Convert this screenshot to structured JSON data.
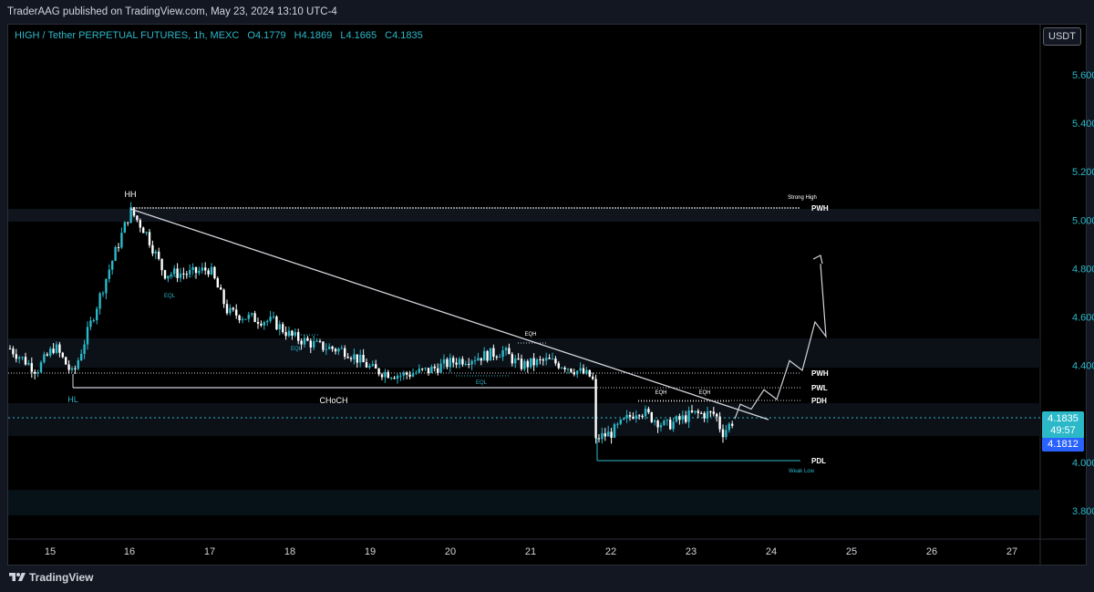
{
  "header": {
    "publisher": "TraderAAG published on TradingView.com, May 23, 2024 13:10 UTC-4"
  },
  "legend": {
    "symbol": "HIGH / Tether PERPETUAL FUTURES, 1h, MEXC",
    "open": "O4.1779",
    "high": "H4.1869",
    "low": "L4.1665",
    "close": "C4.1835"
  },
  "price_axis": {
    "unit": "USDT",
    "labels": [
      "5.6000",
      "5.4000",
      "5.2000",
      "5.0000",
      "4.8000",
      "4.6000",
      "4.4000",
      "4.0000",
      "3.8000"
    ],
    "current_price": "4.1835",
    "countdown": "49:57",
    "marker_price": "4.1812"
  },
  "time_axis": {
    "labels": [
      "15",
      "16",
      "17",
      "18",
      "19",
      "20",
      "21",
      "22",
      "23",
      "24",
      "25",
      "26",
      "27"
    ]
  },
  "annotations": {
    "hh": "HH",
    "hl": "HL",
    "choch": "CHoCH",
    "eql1": "EQL",
    "eql2": "EQL",
    "eql3": "EQL",
    "eqh1": "EQH",
    "eqh2": "EQH",
    "eqh3": "EQH",
    "strong_high": "Strong High",
    "weak_low": "Weak Low",
    "pwh_top": "PWH",
    "pwh": "PWH",
    "pwl": "PWL",
    "pdh": "PDH",
    "pdl": "PDL"
  },
  "footer": {
    "brand": "TradingView"
  },
  "colors": {
    "background": "#000000",
    "up": "#2bb8c9",
    "down": "#ffffff",
    "accent": "#2962ff",
    "price_line": "#2bb8c9"
  },
  "chart_data": {
    "type": "candlestick",
    "interval": "1h",
    "x_axis": "date (May 2024)",
    "ylim": [
      3.72,
      5.78
    ],
    "last": {
      "open": 4.1779,
      "high": 4.1869,
      "low": 4.1665,
      "close": 4.1835
    },
    "swing_points": [
      {
        "label": "HH",
        "date": "May 16",
        "price": 5.05
      },
      {
        "label": "HL",
        "date": "May 15",
        "price": 4.31
      },
      {
        "label": "PDL",
        "date": "May 21",
        "price": 4.01
      }
    ],
    "levels": [
      {
        "name": "PWH",
        "price": 5.05
      },
      {
        "name": "PWH",
        "price": 4.36
      },
      {
        "name": "PWL",
        "price": 4.31
      },
      {
        "name": "PDH",
        "price": 4.26
      },
      {
        "name": "PDL",
        "price": 4.01
      },
      {
        "name": "CHoCH",
        "price": 4.31
      }
    ],
    "trendline": {
      "from": {
        "date": "May 16",
        "price": 5.05
      },
      "to": {
        "date": "May 24",
        "price": 4.18
      }
    },
    "projection": [
      4.18,
      4.24,
      4.22,
      4.3,
      4.26,
      4.42,
      4.38,
      4.58,
      4.52,
      4.82
    ]
  }
}
